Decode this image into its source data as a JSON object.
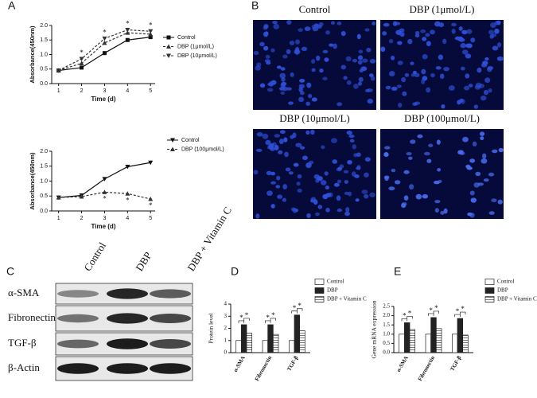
{
  "chart_data": [
    {
      "type": "line",
      "panel_label": "A",
      "x": [
        1,
        2,
        3,
        4,
        5
      ],
      "xlim": [
        0.7,
        5.2
      ],
      "xticks": [
        1,
        2,
        3,
        4,
        5
      ],
      "ylim": [
        0,
        2
      ],
      "yticks": [
        {
          "value": 0,
          "label": "0.0"
        },
        0.5,
        {
          "value": 1,
          "label": "1.0"
        },
        1.5,
        {
          "value": 2,
          "label": "2.0"
        }
      ],
      "xlabel": "Time (d)",
      "ylabel": "Absorbance(450nm)",
      "series": [
        {
          "name": "Control",
          "color": "#111111",
          "marker": "square",
          "dash": false,
          "values": [
            0.45,
            0.55,
            1.05,
            1.5,
            1.6
          ]
        },
        {
          "name": "DBP (1μmol/L)",
          "color": "#333333",
          "marker": "triangle-up",
          "dash": true,
          "values": [
            0.45,
            0.7,
            1.4,
            1.75,
            1.7
          ]
        },
        {
          "name": "DBP (10μmol/L)",
          "color": "#333333",
          "marker": "triangle-down",
          "dash": true,
          "values": [
            0.45,
            0.85,
            1.55,
            1.85,
            1.8
          ]
        }
      ],
      "annotations": [
        {
          "text": "*",
          "series": 2,
          "index": 1
        },
        {
          "text": "*",
          "series": 2,
          "index": 2
        },
        {
          "text": "*",
          "series": 2,
          "index": 3
        },
        {
          "text": "*",
          "series": 2,
          "index": 4
        }
      ]
    },
    {
      "type": "line",
      "x": [
        1,
        2,
        3,
        4,
        5
      ],
      "xlim": [
        0.7,
        5.2
      ],
      "xticks": [
        1,
        2,
        3,
        4,
        5
      ],
      "ylim": [
        0,
        2
      ],
      "yticks": [
        {
          "value": 0,
          "label": "0.0"
        },
        0.5,
        {
          "value": 1,
          "label": "1.0"
        },
        1.5,
        {
          "value": 2,
          "label": "2.0"
        }
      ],
      "xlabel": "Time (d)",
      "ylabel": "Absorbance(450nm)",
      "series": [
        {
          "name": "Control",
          "color": "#111111",
          "marker": "triangle-down",
          "dash": false,
          "values": [
            0.45,
            0.52,
            1.07,
            1.48,
            1.62
          ]
        },
        {
          "name": "DBP (100μmol/L)",
          "color": "#333333",
          "marker": "triangle-up",
          "dash": true,
          "values": [
            0.45,
            0.48,
            0.63,
            0.58,
            0.4
          ]
        }
      ],
      "annotations": [
        {
          "text": "*",
          "series": 1,
          "index": 2
        },
        {
          "text": "*",
          "series": 1,
          "index": 3
        },
        {
          "text": "*",
          "series": 1,
          "index": 4
        }
      ]
    },
    {
      "type": "bar",
      "panel_label": "D",
      "categories": [
        "α-SMA",
        "Fibronectin",
        "TGF-β"
      ],
      "ylim": [
        0,
        4
      ],
      "yticks": [
        0,
        1,
        2,
        3,
        4
      ],
      "ylabel": "Protein level",
      "series": [
        {
          "name": "Control",
          "color": "#ffffff",
          "values": [
            1,
            1,
            1
          ]
        },
        {
          "name": "DBP",
          "color": "#222222",
          "values": [
            2.3,
            2.3,
            3.1
          ]
        },
        {
          "name": "DBP + Vitamin C",
          "color": "#888888",
          "hatch": true,
          "values": [
            1.6,
            1.5,
            1.8
          ]
        }
      ],
      "annotations": [
        {
          "text": "*",
          "category": 0,
          "between": [
            0,
            1
          ]
        },
        {
          "text": "*",
          "category": 0,
          "between": [
            1,
            2
          ]
        },
        {
          "text": "*",
          "category": 1,
          "between": [
            0,
            1
          ]
        },
        {
          "text": "*",
          "category": 1,
          "between": [
            1,
            2
          ]
        },
        {
          "text": "*",
          "category": 2,
          "between": [
            0,
            1
          ]
        },
        {
          "text": "*",
          "category": 2,
          "between": [
            1,
            2
          ]
        }
      ]
    },
    {
      "type": "bar",
      "panel_label": "E",
      "categories": [
        "α-SMA",
        "Fibronectin",
        "TGF-β"
      ],
      "ylim": [
        0,
        2.5
      ],
      "yticks": [
        {
          "value": 0,
          "label": "0.0"
        },
        0.5,
        {
          "value": 1,
          "label": "1.0"
        },
        1.5,
        {
          "value": 2,
          "label": "2.0"
        },
        2.5
      ],
      "ylabel": "Gene mRNA expression",
      "series": [
        {
          "name": "Control",
          "color": "#ffffff",
          "values": [
            1,
            1,
            1
          ]
        },
        {
          "name": "DBP",
          "color": "#222222",
          "values": [
            1.62,
            1.9,
            1.85
          ]
        },
        {
          "name": "DBP + Vitamin C",
          "color": "#888888",
          "hatch": true,
          "values": [
            1.25,
            1.3,
            0.95
          ]
        }
      ],
      "annotations": [
        {
          "text": "*",
          "category": 0,
          "between": [
            0,
            1
          ]
        },
        {
          "text": "*",
          "category": 0,
          "between": [
            1,
            2
          ]
        },
        {
          "text": "*",
          "category": 1,
          "between": [
            0,
            1
          ]
        },
        {
          "text": "*",
          "category": 1,
          "between": [
            1,
            2
          ]
        },
        {
          "text": "*",
          "category": 2,
          "between": [
            0,
            1
          ]
        },
        {
          "text": "*",
          "category": 2,
          "between": [
            1,
            2
          ]
        }
      ]
    }
  ],
  "micrographs": {
    "panel_label": "B",
    "labels": [
      "Control",
      "DBP (1μmol/L)",
      "DBP (10μmol/L)",
      "DBP (100μmol/L)"
    ]
  },
  "western_blot": {
    "panel_label": "C",
    "columns": [
      "Control",
      "DBP",
      "DBP + Vitamin C"
    ],
    "rows": [
      "α-SMA",
      "Fibronectin",
      "TGF-β",
      "β-Actin"
    ]
  }
}
